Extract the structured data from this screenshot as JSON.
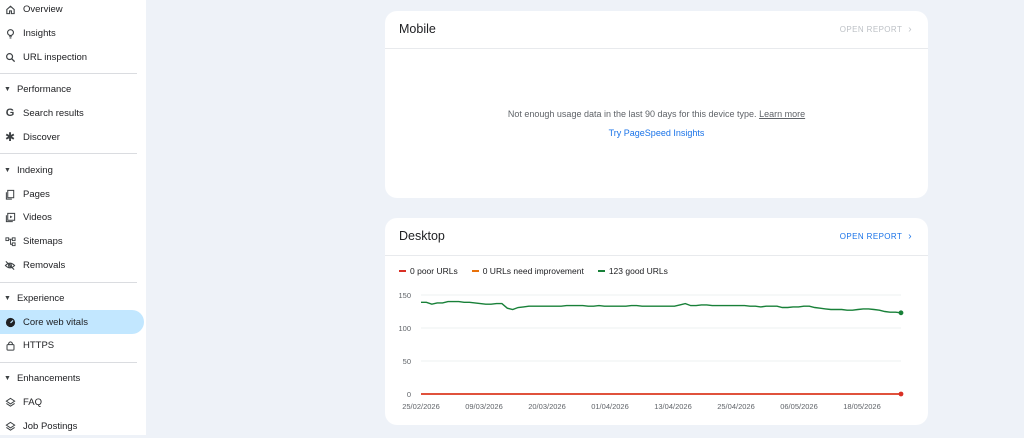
{
  "sidebar": {
    "top_items": [
      {
        "label": "Overview",
        "icon": "home-icon"
      },
      {
        "label": "Insights",
        "icon": "lightbulb-icon"
      },
      {
        "label": "URL inspection",
        "icon": "search-icon"
      }
    ],
    "sections": [
      {
        "title": "Performance",
        "items": [
          {
            "label": "Search results",
            "icon": "google-g-icon"
          },
          {
            "label": "Discover",
            "icon": "asterisk-icon"
          }
        ]
      },
      {
        "title": "Indexing",
        "items": [
          {
            "label": "Pages",
            "icon": "pages-icon"
          },
          {
            "label": "Videos",
            "icon": "videos-icon"
          },
          {
            "label": "Sitemaps",
            "icon": "sitemaps-icon"
          },
          {
            "label": "Removals",
            "icon": "eye-off-icon"
          }
        ]
      },
      {
        "title": "Experience",
        "items": [
          {
            "label": "Core web vitals",
            "icon": "gauge-icon",
            "active": true
          },
          {
            "label": "HTTPS",
            "icon": "lock-icon"
          }
        ]
      },
      {
        "title": "Enhancements",
        "items": [
          {
            "label": "FAQ",
            "icon": "layers-icon"
          },
          {
            "label": "Job Postings",
            "icon": "layers-icon"
          }
        ]
      }
    ]
  },
  "mobile": {
    "title": "Mobile",
    "open_report": "OPEN REPORT",
    "message": "Not enough usage data in the last 90 days for this device type.",
    "learn_more": "Learn more",
    "pagespeed_link": "Try PageSpeed Insights"
  },
  "desktop": {
    "title": "Desktop",
    "open_report": "OPEN REPORT"
  },
  "colors": {
    "poor": "#d93025",
    "needs_improvement": "#e8710a",
    "good": "#188038",
    "accent": "#1a73e8",
    "active_nav": "#c2e7ff"
  },
  "chart_data": {
    "type": "line",
    "legend": [
      "0 poor URLs",
      "0 URLs need improvement",
      "123 good URLs"
    ],
    "ylim": [
      0,
      150
    ],
    "y_ticks": [
      "150",
      "100",
      "50",
      "0"
    ],
    "x_ticks": [
      "25/02/2026",
      "09/03/2026",
      "20/03/2026",
      "01/04/2026",
      "13/04/2026",
      "25/04/2026",
      "06/05/2026",
      "18/05/2026"
    ],
    "series": [
      {
        "name": "poor",
        "values": [
          0,
          0,
          0,
          0,
          0,
          0,
          0,
          0,
          0,
          0,
          0,
          0,
          0,
          0,
          0,
          0,
          0,
          0,
          0,
          0,
          0,
          0,
          0,
          0,
          0,
          0,
          0,
          0,
          0,
          0,
          0,
          0,
          0,
          0,
          0,
          0,
          0,
          0,
          0,
          0,
          0,
          0,
          0,
          0,
          0,
          0,
          0,
          0,
          0,
          0,
          0,
          0,
          0,
          0,
          0,
          0,
          0,
          0,
          0,
          0,
          0,
          0,
          0,
          0,
          0,
          0,
          0,
          0,
          0,
          0,
          0,
          0,
          0,
          0,
          0,
          0,
          0,
          0,
          0,
          0,
          0,
          0,
          0,
          0,
          0,
          0,
          0,
          0,
          0,
          0
        ]
      },
      {
        "name": "needs improvement",
        "values": [
          0,
          0,
          0,
          0,
          0,
          0,
          0,
          0,
          0,
          0,
          0,
          0,
          0,
          0,
          0,
          0,
          0,
          0,
          0,
          0,
          0,
          0,
          0,
          0,
          0,
          0,
          0,
          0,
          0,
          0,
          0,
          0,
          0,
          0,
          0,
          0,
          0,
          0,
          0,
          0,
          0,
          0,
          0,
          0,
          0,
          0,
          0,
          0,
          0,
          0,
          0,
          0,
          0,
          0,
          0,
          0,
          0,
          0,
          0,
          0,
          0,
          0,
          0,
          0,
          0,
          0,
          0,
          0,
          0,
          0,
          0,
          0,
          0,
          0,
          0,
          0,
          0,
          0,
          0,
          0,
          0,
          0,
          0,
          0,
          0,
          0,
          0,
          0,
          0,
          0
        ]
      },
      {
        "name": "good",
        "values": [
          139,
          139,
          136,
          138,
          138,
          140,
          140,
          140,
          139,
          139,
          138,
          137,
          136,
          136,
          137,
          137,
          130,
          128,
          131,
          132,
          133,
          133,
          133,
          133,
          133,
          133,
          133,
          134,
          134,
          134,
          134,
          133,
          133,
          134,
          133,
          133,
          133,
          133,
          133,
          134,
          134,
          133,
          133,
          133,
          133,
          133,
          133,
          133,
          135,
          137,
          134,
          134,
          135,
          135,
          134,
          134,
          134,
          134,
          134,
          134,
          134,
          133,
          133,
          132,
          133,
          133,
          133,
          131,
          131,
          132,
          132,
          133,
          133,
          131,
          130,
          129,
          128,
          128,
          128,
          127,
          127,
          128,
          129,
          129,
          128,
          127,
          125,
          124,
          124,
          123
        ]
      }
    ]
  }
}
